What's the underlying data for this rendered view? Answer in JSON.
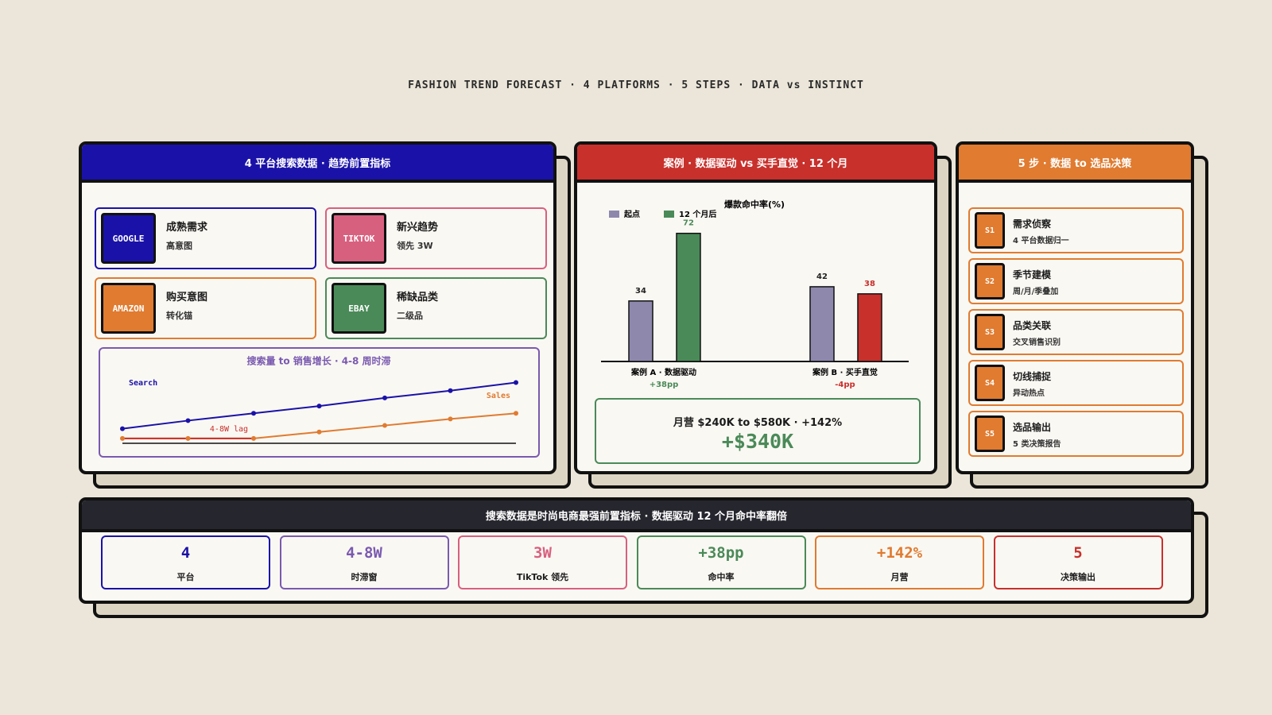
{
  "title": "FASHION TREND FORECAST · 4 PLATFORMS · 5 STEPS · DATA vs INSTINCT",
  "platforms_panel": {
    "title": "4 平台搜索数据 · 趋势前置指标",
    "color": "#1a12a8",
    "platforms": [
      {
        "badge": "GOOGLE",
        "label": "成熟需求",
        "sub": "高意图",
        "color": "#1a12a8"
      },
      {
        "badge": "TIKTOK",
        "label": "新兴趋势",
        "sub": "领先 3W",
        "color": "#d8607f"
      },
      {
        "badge": "AMAZON",
        "label": "购买意图",
        "sub": "转化锚",
        "color": "#e07b30"
      },
      {
        "badge": "EBAY",
        "label": "稀缺品类",
        "sub": "二级品",
        "color": "#4a8a58"
      }
    ],
    "lag_chart": {
      "type": "line",
      "title": "搜索量 to 销售增长 · 4-8 周时滞",
      "annotation": "4-8W lag",
      "lag_color": "#c8302c",
      "series": [
        {
          "name": "Search",
          "color": "#1a12a8",
          "values": [
            18,
            28,
            37,
            46,
            56,
            65,
            75
          ]
        },
        {
          "name": "Sales",
          "color": "#e07b30",
          "values": [
            6,
            6,
            6,
            14,
            22,
            30,
            37
          ]
        }
      ]
    }
  },
  "case_panel": {
    "title": "案例 · 数据驱动 vs 买手直觉 · 12 个月",
    "color": "#c8302c",
    "chart": {
      "type": "bar",
      "title": "爆款命中率(%)",
      "categories": [
        "案例 A · 数据驱动",
        "案例 B · 买手直觉"
      ],
      "category_notes": [
        "+38pp",
        "-4pp"
      ],
      "series": [
        {
          "name": "起点",
          "color": "#8e88ad",
          "values": [
            34,
            42
          ]
        },
        {
          "name": "12 个月后",
          "color": "#4a8a58",
          "colors": [
            "#4a8a58",
            "#c8302c"
          ],
          "values": [
            72,
            38
          ]
        }
      ]
    },
    "revenue": {
      "line": "月营 $240K to $580K · +142%",
      "highlight": "+$340K"
    }
  },
  "steps_panel": {
    "title": "5 步 · 数据 to 选品决策",
    "color": "#e07b30",
    "steps": [
      {
        "id": "S1",
        "label": "需求侦察",
        "sub": "4 平台数据归一"
      },
      {
        "id": "S2",
        "label": "季节建模",
        "sub": "周/月/季叠加"
      },
      {
        "id": "S3",
        "label": "品类关联",
        "sub": "交叉销售识别"
      },
      {
        "id": "S4",
        "label": "切线捕捉",
        "sub": "异动热点"
      },
      {
        "id": "S5",
        "label": "选品输出",
        "sub": "5 类决策报告"
      }
    ]
  },
  "summary_panel": {
    "title": "搜索数据是时尚电商最强前置指标 · 数据驱动 12 个月命中率翻倍",
    "kpis": [
      {
        "value": "4",
        "label": "平台",
        "color": "#1a12a8"
      },
      {
        "value": "4-8W",
        "label": "时滞窗",
        "color": "#7a5ab0"
      },
      {
        "value": "3W",
        "label": "TikTok 领先",
        "color": "#d8607f"
      },
      {
        "value": "+38pp",
        "label": "命中率",
        "color": "#4a8a58"
      },
      {
        "value": "+142%",
        "label": "月营",
        "color": "#e07b30"
      },
      {
        "value": "5",
        "label": "决策输出",
        "color": "#c8302c"
      }
    ]
  }
}
